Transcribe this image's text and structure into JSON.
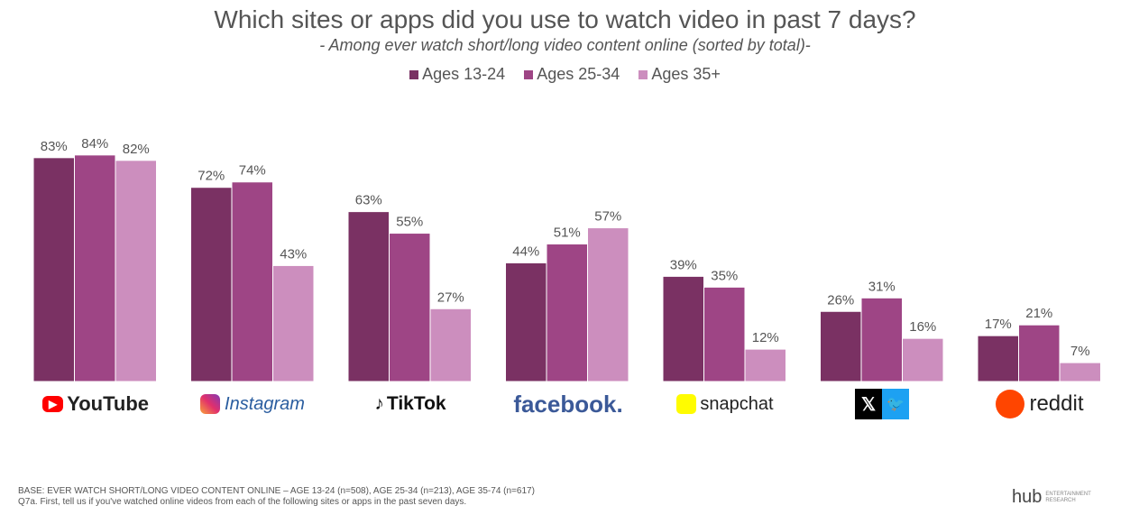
{
  "chart_data": {
    "type": "bar",
    "title": "Which sites or apps did you use to watch video in past 7 days?",
    "subtitle": "- Among ever watch short/long video content online (sorted by total)-",
    "categories": [
      "YouTube",
      "Instagram",
      "TikTok",
      "facebook",
      "snapchat",
      "X / Twitter",
      "reddit"
    ],
    "series": [
      {
        "name": "Ages 13-24",
        "color": "#7a3163",
        "values": [
          83,
          72,
          63,
          44,
          39,
          26,
          17
        ]
      },
      {
        "name": "Ages 25-34",
        "color": "#9e4585",
        "values": [
          84,
          74,
          55,
          51,
          35,
          31,
          21
        ]
      },
      {
        "name": "Ages 35+",
        "color": "#cc8ebe",
        "values": [
          82,
          43,
          27,
          57,
          12,
          16,
          7
        ]
      }
    ],
    "ylim": [
      0,
      100
    ],
    "grid": false,
    "legend_placement": "top",
    "value_format": "%"
  },
  "logos": {
    "youtube": "YouTube",
    "instagram": "Instagram",
    "tiktok": "TikTok",
    "facebook": "facebook.",
    "snapchat": "snapchat",
    "x": "𝕏",
    "reddit": "reddit"
  },
  "footer": {
    "base": "BASE: EVER WATCH SHORT/LONG VIDEO CONTENT ONLINE – AGE 13-24 (n=508), AGE 25-34 (n=213), AGE 35-74 (n=617)",
    "question": "Q7a. First, tell us if you've watched online videos from each of the following sites or apps in the past seven days.",
    "brand": "hub",
    "brand_sub1": "ENTERTAINMENT",
    "brand_sub2": "RESEARCH"
  }
}
